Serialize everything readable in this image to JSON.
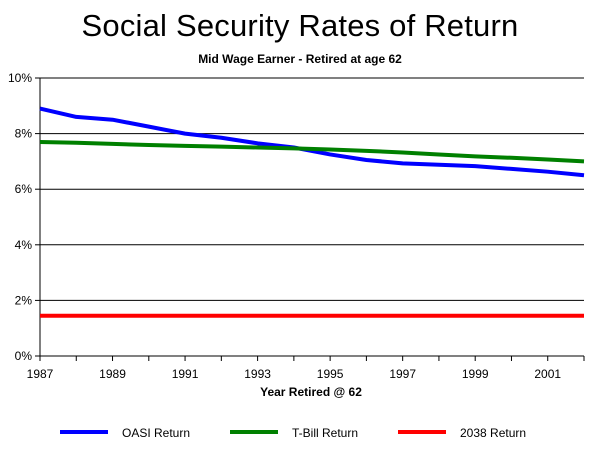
{
  "chart_data": {
    "type": "line",
    "title": "Social Security Rates of Return",
    "subtitle": "Mid Wage Earner - Retired at age 62",
    "xlabel": "Year Retired @ 62",
    "ylabel": "",
    "xlim": [
      1987,
      2002
    ],
    "ylim": [
      0,
      10
    ],
    "x_ticks": [
      1987,
      1989,
      1991,
      1993,
      1995,
      1997,
      1999,
      2001
    ],
    "x_ticks_unlabeled": [
      1988,
      1990,
      1992,
      1994,
      1996,
      1998,
      2000,
      2002
    ],
    "y_ticks": [
      0,
      2,
      4,
      6,
      8,
      10
    ],
    "y_tick_labels": [
      "0%",
      "2%",
      "4%",
      "6%",
      "8%",
      "10%"
    ],
    "grid": "horizontal",
    "legend_position": "bottom",
    "x": [
      1987,
      1988,
      1989,
      1990,
      1991,
      1992,
      1993,
      1994,
      1995,
      1996,
      1997,
      1998,
      1999,
      2000,
      2001,
      2002
    ],
    "series": [
      {
        "name": "OASI Return",
        "color": "#0000ff",
        "values": [
          8.9,
          8.6,
          8.5,
          8.25,
          8.0,
          7.85,
          7.65,
          7.5,
          7.25,
          7.05,
          6.93,
          6.88,
          6.83,
          6.73,
          6.63,
          6.5
        ]
      },
      {
        "name": "T-Bill Return",
        "color": "#008000",
        "values": [
          7.7,
          7.67,
          7.63,
          7.59,
          7.56,
          7.53,
          7.5,
          7.47,
          7.43,
          7.38,
          7.32,
          7.25,
          7.18,
          7.13,
          7.07,
          7.0
        ]
      },
      {
        "name": "2038 Return",
        "color": "#ff0000",
        "values": [
          1.45,
          1.45,
          1.45,
          1.45,
          1.45,
          1.45,
          1.45,
          1.45,
          1.45,
          1.45,
          1.45,
          1.45,
          1.45,
          1.45,
          1.45,
          1.45
        ]
      }
    ]
  }
}
